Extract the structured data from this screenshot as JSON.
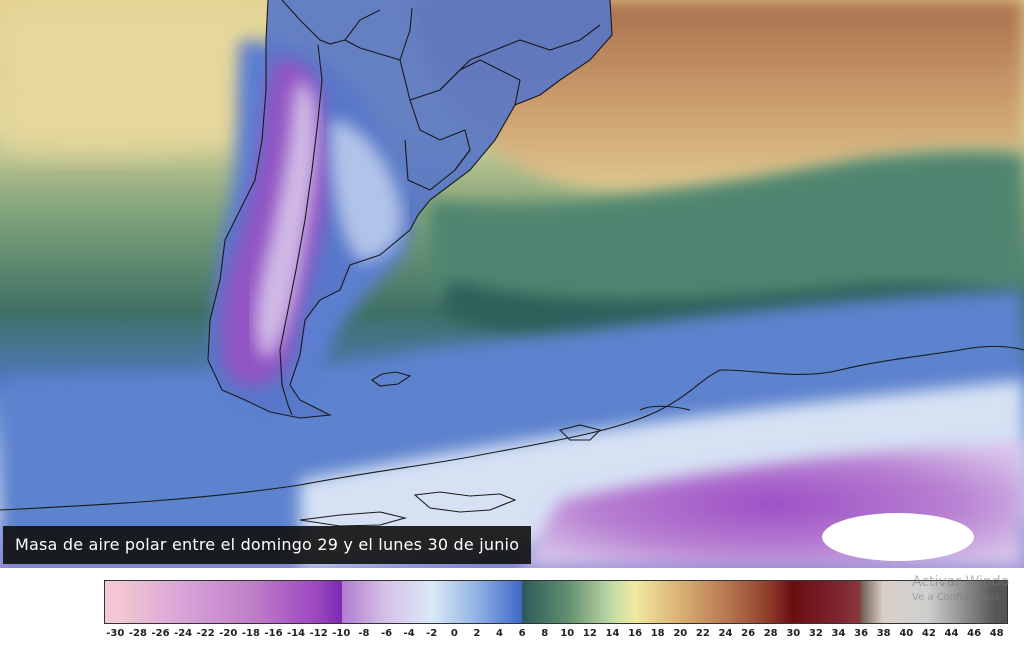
{
  "caption": "Masa de aire polar entre el domingo 29 y el lunes 30 de junio",
  "legend": {
    "ticks": [
      "-30",
      "-28",
      "-26",
      "-24",
      "-22",
      "-20",
      "-18",
      "-16",
      "-14",
      "-12",
      "-10",
      "-8",
      "-6",
      "-4",
      "-2",
      "0",
      "2",
      "4",
      "6",
      "8",
      "10",
      "12",
      "14",
      "16",
      "18",
      "20",
      "22",
      "24",
      "26",
      "28",
      "30",
      "32",
      "34",
      "36",
      "38",
      "40",
      "42",
      "44",
      "46",
      "48"
    ],
    "color_stops": [
      {
        "value": -30,
        "color": "#f4c8d2"
      },
      {
        "value": -24,
        "color": "#d7a3d8"
      },
      {
        "value": -18,
        "color": "#bf7fc8"
      },
      {
        "value": -12,
        "color": "#9a45be"
      },
      {
        "value": -10,
        "color": "#7a2bb0"
      },
      {
        "value": -9.99,
        "color": "#b27ccf"
      },
      {
        "value": -6,
        "color": "#d6c2ea"
      },
      {
        "value": -2,
        "color": "#dbe9f6"
      },
      {
        "value": 2,
        "color": "#8fb3e4"
      },
      {
        "value": 6,
        "color": "#3f67c6"
      },
      {
        "value": 6.01,
        "color": "#2c5a5a"
      },
      {
        "value": 10,
        "color": "#5f8f6f"
      },
      {
        "value": 14,
        "color": "#c3dba6"
      },
      {
        "value": 16,
        "color": "#f1eaa3"
      },
      {
        "value": 20,
        "color": "#d9b174"
      },
      {
        "value": 24,
        "color": "#b87a52"
      },
      {
        "value": 28,
        "color": "#8e3a2a"
      },
      {
        "value": 30,
        "color": "#6a0d12"
      },
      {
        "value": 34,
        "color": "#7d2530"
      },
      {
        "value": 36,
        "color": "#8a3a3e"
      },
      {
        "value": 36.01,
        "color": "#6f5a4e"
      },
      {
        "value": 38,
        "color": "#d9cfc8"
      },
      {
        "value": 42,
        "color": "#cfcfcf"
      },
      {
        "value": 48,
        "color": "#555555"
      }
    ]
  },
  "watermark": {
    "line1": "Activar Windo",
    "line2": "Ve a Configuració"
  }
}
